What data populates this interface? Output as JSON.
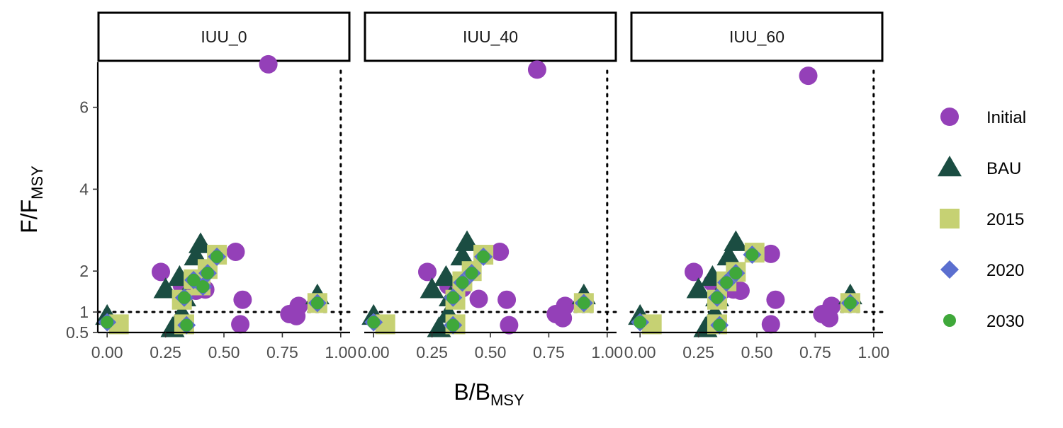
{
  "chart_data": {
    "type": "scatter",
    "facet_labels": [
      "IUU_0",
      "IUU_40",
      "IUU_60"
    ],
    "xlabel": {
      "main": "B",
      "sub": "MSY"
    },
    "ylabel": {
      "main": "F",
      "sub": "MSY"
    },
    "xlim": [
      -0.04,
      1.04
    ],
    "ylim": [
      0.5,
      7.1
    ],
    "x_ticks": [
      0.0,
      0.25,
      0.5,
      0.75,
      1.0
    ],
    "x_tick_labels": [
      "0.00",
      "0.25",
      "0.50",
      "0.75",
      "1.00"
    ],
    "y_ticks": [
      0.5,
      1,
      2,
      4,
      6
    ],
    "y_tick_labels": [
      "0.5",
      "1",
      "2",
      "4",
      "6"
    ],
    "reference_lines": {
      "x": 1.0,
      "y": 1.0
    },
    "grid": false,
    "legend": {
      "placement": "right",
      "entries": [
        "Initial",
        "BAU",
        "2015",
        "2020",
        "2030"
      ]
    },
    "colors": {
      "Initial": "#9440b8",
      "BAU": "#1b4d42",
      "2015": "#c6d173",
      "2020": "#5b6fcf",
      "2030": "#3fa83a"
    },
    "series": [
      {
        "name": "Initial",
        "shape": "circle",
        "points": {
          "IUU_0": [
            [
              0.23,
              1.98
            ],
            [
              0.32,
              1.65
            ],
            [
              0.35,
              1.58
            ],
            [
              0.38,
              1.52
            ],
            [
              0.42,
              1.55
            ],
            [
              0.55,
              2.47
            ],
            [
              0.58,
              1.3
            ],
            [
              0.57,
              0.7
            ],
            [
              0.78,
              0.95
            ],
            [
              0.81,
              0.9
            ],
            [
              0.82,
              1.15
            ],
            [
              0.69,
              7.05
            ]
          ],
          "IUU_40": [
            [
              0.23,
              1.98
            ],
            [
              0.32,
              1.65
            ],
            [
              0.35,
              1.58
            ],
            [
              0.38,
              1.58
            ],
            [
              0.45,
              1.32
            ],
            [
              0.54,
              2.47
            ],
            [
              0.57,
              1.3
            ],
            [
              0.58,
              0.68
            ],
            [
              0.78,
              0.95
            ],
            [
              0.81,
              0.85
            ],
            [
              0.82,
              1.15
            ],
            [
              0.7,
              6.92
            ]
          ],
          "IUU_60": [
            [
              0.23,
              1.98
            ],
            [
              0.31,
              1.72
            ],
            [
              0.36,
              1.55
            ],
            [
              0.4,
              1.55
            ],
            [
              0.43,
              1.52
            ],
            [
              0.56,
              2.42
            ],
            [
              0.58,
              1.3
            ],
            [
              0.56,
              0.7
            ],
            [
              0.78,
              0.95
            ],
            [
              0.81,
              0.85
            ],
            [
              0.82,
              1.15
            ],
            [
              0.72,
              6.77
            ]
          ]
        }
      },
      {
        "name": "BAU",
        "shape": "triangle",
        "points": {
          "IUU_0": [
            [
              0.0,
              0.9
            ],
            [
              0.25,
              1.55
            ],
            [
              0.31,
              1.85
            ],
            [
              0.33,
              1.35
            ],
            [
              0.38,
              2.35
            ],
            [
              0.4,
              2.65
            ],
            [
              0.28,
              0.6
            ],
            [
              0.32,
              0.95
            ],
            [
              0.9,
              1.4
            ]
          ],
          "IUU_40": [
            [
              0.0,
              0.9
            ],
            [
              0.25,
              1.55
            ],
            [
              0.31,
              1.85
            ],
            [
              0.33,
              1.35
            ],
            [
              0.38,
              2.35
            ],
            [
              0.4,
              2.7
            ],
            [
              0.28,
              0.6
            ],
            [
              0.32,
              0.95
            ],
            [
              0.9,
              1.4
            ]
          ],
          "IUU_60": [
            [
              0.0,
              0.9
            ],
            [
              0.25,
              1.55
            ],
            [
              0.31,
              1.85
            ],
            [
              0.33,
              1.35
            ],
            [
              0.38,
              2.35
            ],
            [
              0.41,
              2.7
            ],
            [
              0.28,
              0.6
            ],
            [
              0.32,
              0.95
            ],
            [
              0.9,
              1.4
            ]
          ]
        }
      },
      {
        "name": "2015",
        "shape": "square",
        "points": {
          "IUU_0": [
            [
              0.05,
              0.7
            ],
            [
              0.33,
              0.7
            ],
            [
              0.32,
              1.3
            ],
            [
              0.37,
              1.8
            ],
            [
              0.4,
              1.65
            ],
            [
              0.43,
              2.05
            ],
            [
              0.47,
              2.4
            ],
            [
              0.9,
              1.22
            ]
          ],
          "IUU_40": [
            [
              0.05,
              0.7
            ],
            [
              0.35,
              0.7
            ],
            [
              0.35,
              1.3
            ],
            [
              0.38,
              1.75
            ],
            [
              0.42,
              2.0
            ],
            [
              0.47,
              2.4
            ],
            [
              0.9,
              1.22
            ]
          ],
          "IUU_60": [
            [
              0.05,
              0.7
            ],
            [
              0.33,
              0.7
            ],
            [
              0.33,
              1.3
            ],
            [
              0.37,
              1.75
            ],
            [
              0.41,
              1.98
            ],
            [
              0.49,
              2.45
            ],
            [
              0.9,
              1.22
            ]
          ]
        }
      },
      {
        "name": "2020",
        "shape": "diamond",
        "points": {
          "IUU_0": [
            [
              0.0,
              0.75
            ],
            [
              0.34,
              0.68
            ],
            [
              0.33,
              1.35
            ],
            [
              0.37,
              1.78
            ],
            [
              0.41,
              1.62
            ],
            [
              0.43,
              1.95
            ],
            [
              0.47,
              2.35
            ],
            [
              0.9,
              1.22
            ]
          ],
          "IUU_40": [
            [
              0.0,
              0.75
            ],
            [
              0.34,
              0.68
            ],
            [
              0.34,
              1.35
            ],
            [
              0.38,
              1.72
            ],
            [
              0.42,
              1.95
            ],
            [
              0.47,
              2.35
            ],
            [
              0.9,
              1.22
            ]
          ],
          "IUU_60": [
            [
              0.0,
              0.75
            ],
            [
              0.34,
              0.68
            ],
            [
              0.33,
              1.35
            ],
            [
              0.37,
              1.72
            ],
            [
              0.41,
              1.95
            ],
            [
              0.48,
              2.4
            ],
            [
              0.9,
              1.22
            ]
          ]
        }
      },
      {
        "name": "2030",
        "shape": "small-circle",
        "points": {
          "IUU_0": [
            [
              0.0,
              0.75
            ],
            [
              0.34,
              0.68
            ],
            [
              0.33,
              1.35
            ],
            [
              0.37,
              1.78
            ],
            [
              0.41,
              1.62
            ],
            [
              0.43,
              1.95
            ],
            [
              0.47,
              2.35
            ],
            [
              0.9,
              1.22
            ]
          ],
          "IUU_40": [
            [
              0.0,
              0.75
            ],
            [
              0.34,
              0.68
            ],
            [
              0.34,
              1.35
            ],
            [
              0.38,
              1.72
            ],
            [
              0.42,
              1.95
            ],
            [
              0.47,
              2.35
            ],
            [
              0.9,
              1.22
            ]
          ],
          "IUU_60": [
            [
              0.0,
              0.75
            ],
            [
              0.34,
              0.68
            ],
            [
              0.33,
              1.35
            ],
            [
              0.37,
              1.72
            ],
            [
              0.41,
              1.95
            ],
            [
              0.48,
              2.4
            ],
            [
              0.9,
              1.22
            ]
          ]
        }
      }
    ]
  }
}
